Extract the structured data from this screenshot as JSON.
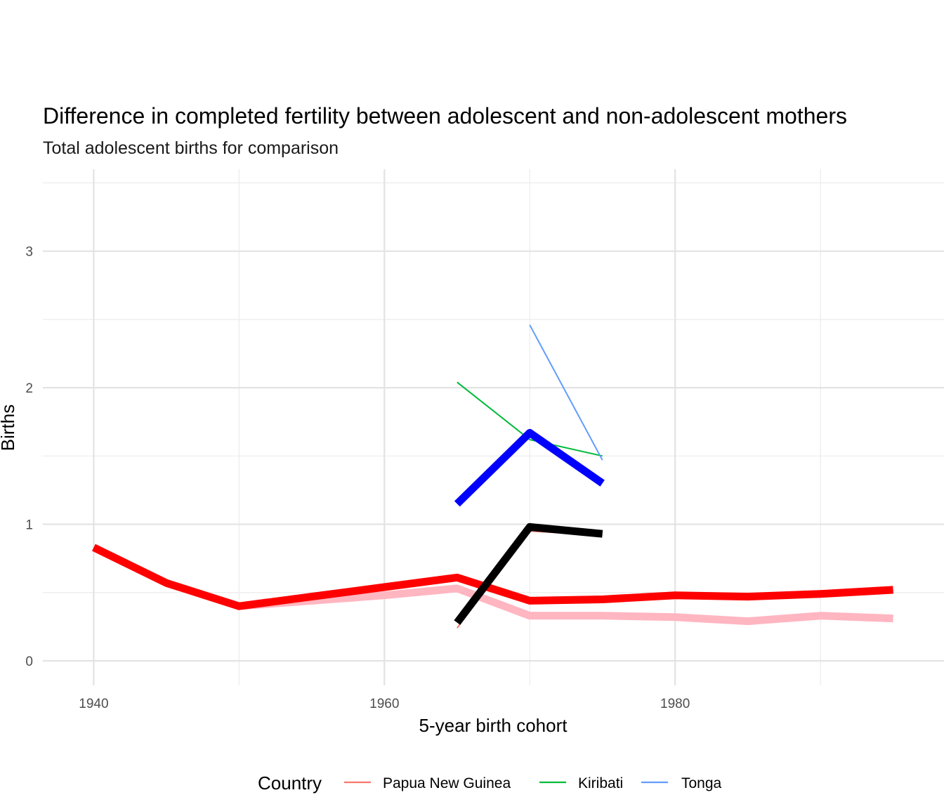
{
  "chart_data": {
    "type": "line",
    "title": "Difference in completed fertility between adolescent and non-adolescent mothers",
    "subtitle": "Total adolescent births for comparison",
    "xlabel": "5-year birth cohort",
    "ylabel": "Births",
    "xlim": [
      1936.5,
      1998.5
    ],
    "ylim": [
      -0.18,
      3.6
    ],
    "x_ticks": [
      1940,
      1960,
      1980
    ],
    "y_ticks": [
      0,
      1,
      2,
      3
    ],
    "x_ticks_minor": [
      1950,
      1970,
      1990
    ],
    "y_ticks_minor": [
      0.5,
      1.5,
      2.5,
      3.5
    ],
    "grid": true,
    "legend": {
      "title": "Country",
      "position": "bottom",
      "entries": [
        {
          "label": "Papua New Guinea",
          "color": "#F8766D"
        },
        {
          "label": "Kiribati",
          "color": "#00BA38"
        },
        {
          "label": "Tonga",
          "color": "#619CFF"
        }
      ]
    },
    "series": [
      {
        "name": "Papua New Guinea",
        "color": "#F8766D",
        "width": 2,
        "x": [
          1965,
          1970,
          1975
        ],
        "y": [
          0.24,
          0.95,
          0.92
        ]
      },
      {
        "name": "Kiribati",
        "color": "#00BA38",
        "width": 2,
        "x": [
          1965,
          1970,
          1975
        ],
        "y": [
          2.04,
          1.62,
          1.5
        ]
      },
      {
        "name": "Tonga",
        "color": "#619CFF",
        "width": 2,
        "x": [
          1970,
          1975
        ],
        "y": [
          2.46,
          1.47
        ]
      },
      {
        "color": "#FFB6C1",
        "width": 11,
        "x": [
          1950,
          1955,
          1960,
          1965,
          1970,
          1975,
          1980,
          1985,
          1990,
          1995
        ],
        "y": [
          0.4,
          0.44,
          0.48,
          0.53,
          0.33,
          0.33,
          0.32,
          0.29,
          0.33,
          0.31
        ]
      },
      {
        "color": "#FF0000",
        "width": 11,
        "x": [
          1940,
          1945,
          1950,
          1955,
          1960,
          1965,
          1970,
          1975,
          1980,
          1985,
          1990,
          1995
        ],
        "y": [
          0.83,
          0.57,
          0.4,
          0.47,
          0.54,
          0.61,
          0.44,
          0.45,
          0.48,
          0.47,
          0.49,
          0.52
        ]
      },
      {
        "color": "#000000",
        "width": 11,
        "x": [
          1965,
          1970,
          1975
        ],
        "y": [
          0.28,
          0.98,
          0.93
        ]
      },
      {
        "color": "#0000FF",
        "width": 11,
        "x": [
          1965,
          1970,
          1975
        ],
        "y": [
          1.15,
          1.67,
          1.3
        ]
      }
    ]
  }
}
